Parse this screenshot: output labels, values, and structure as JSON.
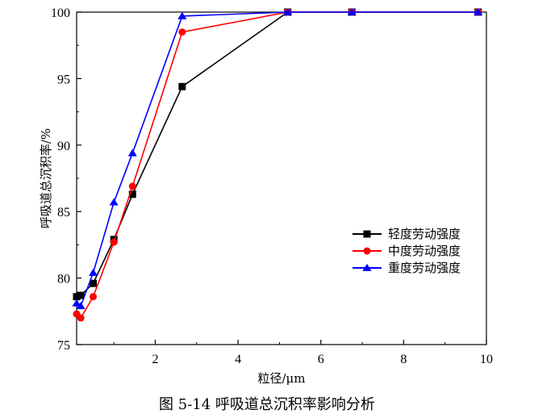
{
  "chart_data": {
    "type": "line",
    "title": "",
    "caption": "图 5-14  呼吸道总沉积率影响分析",
    "xlabel": "粒径/μm",
    "ylabel": "呼吸道总沉积率/%",
    "xlim": [
      0.1,
      10
    ],
    "ylim": [
      75,
      100
    ],
    "xticks": [
      2,
      4,
      6,
      8,
      10
    ],
    "yticks": [
      75,
      80,
      85,
      90,
      95,
      100
    ],
    "legend_position": "right",
    "series": [
      {
        "name": "轻度劳动强度",
        "color": "#000000",
        "marker": "square",
        "x": [
          0.1,
          0.2,
          0.5,
          1.0,
          1.45,
          2.65,
          5.2,
          6.75,
          9.8
        ],
        "y": [
          78.6,
          78.7,
          79.6,
          82.9,
          86.3,
          94.4,
          100,
          100,
          100
        ]
      },
      {
        "name": "中度劳动强度",
        "color": "#ff0000",
        "marker": "circle",
        "x": [
          0.1,
          0.2,
          0.5,
          1.0,
          1.45,
          2.65,
          5.2,
          6.75,
          9.8
        ],
        "y": [
          77.3,
          77.0,
          78.6,
          82.7,
          86.9,
          98.5,
          100,
          100,
          100
        ]
      },
      {
        "name": "重度劳动强度",
        "color": "#0000ff",
        "marker": "triangle",
        "x": [
          0.1,
          0.2,
          0.5,
          1.0,
          1.45,
          2.65,
          5.2,
          6.75,
          9.8
        ],
        "y": [
          78.1,
          77.9,
          80.4,
          85.7,
          89.4,
          99.7,
          100,
          100,
          100
        ]
      }
    ]
  }
}
